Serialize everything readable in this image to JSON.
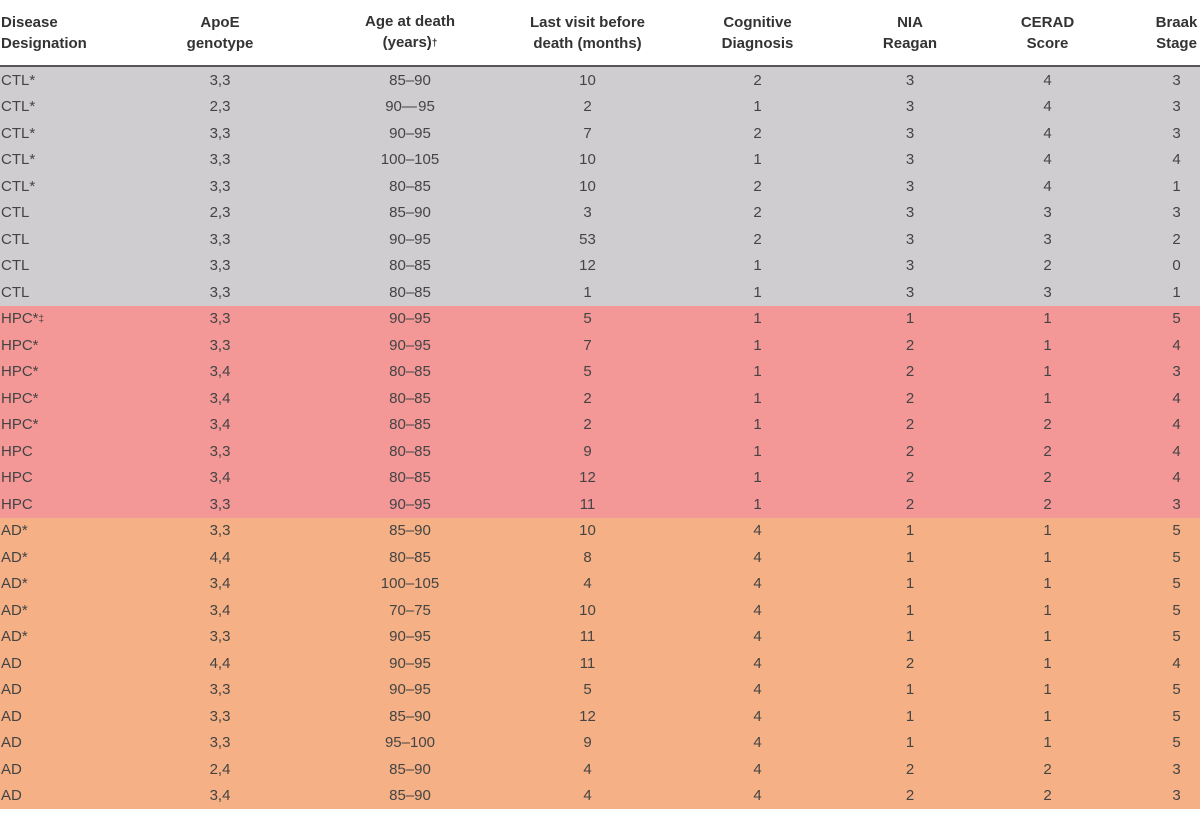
{
  "table": {
    "columns": [
      {
        "line1": "Disease",
        "line2": "Designation"
      },
      {
        "line1": "ApoE",
        "line2": "genotype"
      },
      {
        "line1": "Age at death",
        "line2": "(years)",
        "mark": "†"
      },
      {
        "line1": "Last visit before",
        "line2": "death (months)"
      },
      {
        "line1": "Cognitive",
        "line2": "Diagnosis"
      },
      {
        "line1": "NIA",
        "line2": "Reagan"
      },
      {
        "line1": "CERAD",
        "line2": "Score"
      },
      {
        "line1": "Braak",
        "line2": "Stage"
      }
    ],
    "rows": [
      {
        "group": "ctl",
        "cells": [
          "CTL*",
          "3,3",
          "85–90",
          "10",
          "2",
          "3",
          "4",
          "3"
        ]
      },
      {
        "group": "ctl",
        "cells": [
          "CTL*",
          "2,3",
          "90— 95",
          "2",
          "1",
          "3",
          "4",
          "3"
        ]
      },
      {
        "group": "ctl",
        "cells": [
          "CTL*",
          "3,3",
          "90–95",
          "7",
          "2",
          "3",
          "4",
          "3"
        ]
      },
      {
        "group": "ctl",
        "cells": [
          "CTL*",
          "3,3",
          "100–105",
          "10",
          "1",
          "3",
          "4",
          "4"
        ]
      },
      {
        "group": "ctl",
        "cells": [
          "CTL*",
          "3,3",
          "80–85",
          "10",
          "2",
          "3",
          "4",
          "1"
        ]
      },
      {
        "group": "ctl",
        "cells": [
          "CTL",
          "2,3",
          "85–90",
          "3",
          "2",
          "3",
          "3",
          "3"
        ]
      },
      {
        "group": "ctl",
        "cells": [
          "CTL",
          "3,3",
          "90–95",
          "53",
          "2",
          "3",
          "3",
          "2"
        ]
      },
      {
        "group": "ctl",
        "cells": [
          "CTL",
          "3,3",
          "80–85",
          "12",
          "1",
          "3",
          "2",
          "0"
        ]
      },
      {
        "group": "ctl",
        "cells": [
          "CTL",
          "3,3",
          "80–85",
          "1",
          "1",
          "3",
          "3",
          "1"
        ]
      },
      {
        "group": "hpc",
        "cells": [
          "HPC*",
          "3,3",
          "90–95",
          "5",
          "1",
          "1",
          "1",
          "5"
        ],
        "mark": "‡"
      },
      {
        "group": "hpc",
        "cells": [
          "HPC*",
          "3,3",
          "90–95",
          "7",
          "1",
          "2",
          "1",
          "4"
        ]
      },
      {
        "group": "hpc",
        "cells": [
          "HPC*",
          "3,4",
          "80–85",
          "5",
          "1",
          "2",
          "1",
          "3"
        ]
      },
      {
        "group": "hpc",
        "cells": [
          "HPC*",
          "3,4",
          "80–85",
          "2",
          "1",
          "2",
          "1",
          "4"
        ]
      },
      {
        "group": "hpc",
        "cells": [
          "HPC*",
          "3,4",
          "80–85",
          "2",
          "1",
          "2",
          "2",
          "4"
        ]
      },
      {
        "group": "hpc",
        "cells": [
          "HPC",
          "3,3",
          "80–85",
          "9",
          "1",
          "2",
          "2",
          "4"
        ]
      },
      {
        "group": "hpc",
        "cells": [
          "HPC",
          "3,4",
          "80–85",
          "12",
          "1",
          "2",
          "2",
          "4"
        ]
      },
      {
        "group": "hpc",
        "cells": [
          "HPC",
          "3,3",
          "90–95",
          "11",
          "1",
          "2",
          "2",
          "3"
        ]
      },
      {
        "group": "ad",
        "cells": [
          "AD*",
          "3,3",
          "85–90",
          "10",
          "4",
          "1",
          "1",
          "5"
        ]
      },
      {
        "group": "ad",
        "cells": [
          "AD*",
          "4,4",
          "80–85",
          "8",
          "4",
          "1",
          "1",
          "5"
        ]
      },
      {
        "group": "ad",
        "cells": [
          "AD*",
          "3,4",
          "100–105",
          "4",
          "4",
          "1",
          "1",
          "5"
        ]
      },
      {
        "group": "ad",
        "cells": [
          "AD*",
          "3,4",
          "70–75",
          "10",
          "4",
          "1",
          "1",
          "5"
        ]
      },
      {
        "group": "ad",
        "cells": [
          "AD*",
          "3,3",
          "90–95",
          "11",
          "4",
          "1",
          "1",
          "5"
        ]
      },
      {
        "group": "ad",
        "cells": [
          "AD",
          "4,4",
          "90–95",
          "11",
          "4",
          "2",
          "1",
          "4"
        ]
      },
      {
        "group": "ad",
        "cells": [
          "AD",
          "3,3",
          "90–95",
          "5",
          "4",
          "1",
          "1",
          "5"
        ]
      },
      {
        "group": "ad",
        "cells": [
          "AD",
          "3,3",
          "85–90",
          "12",
          "4",
          "1",
          "1",
          "5"
        ]
      },
      {
        "group": "ad",
        "cells": [
          "AD",
          "3,3",
          "95–100",
          "9",
          "4",
          "1",
          "1",
          "5"
        ]
      },
      {
        "group": "ad",
        "cells": [
          "AD",
          "2,4",
          "85–90",
          "4",
          "4",
          "2",
          "2",
          "3"
        ]
      },
      {
        "group": "ad",
        "cells": [
          "AD",
          "3,4",
          "85–90",
          "4",
          "4",
          "2",
          "2",
          "3"
        ]
      }
    ]
  },
  "colors": {
    "ctl": "#cfcdd0",
    "hpc": "#f39797",
    "ad": "#f5b185"
  }
}
